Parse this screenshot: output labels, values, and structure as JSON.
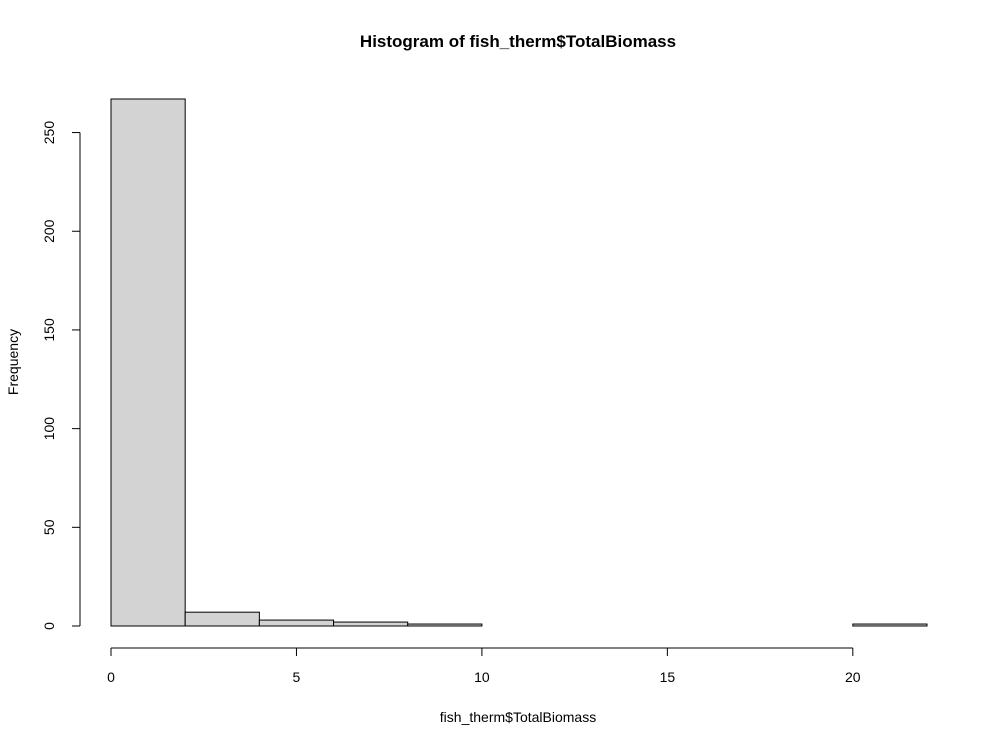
{
  "chart_data": {
    "type": "bar",
    "title": "Histogram of fish_therm$TotalBiomass",
    "xlabel": "fish_therm$TotalBiomass",
    "ylabel": "Frequency",
    "bins": [
      {
        "start": 0,
        "end": 2,
        "count": 267
      },
      {
        "start": 2,
        "end": 4,
        "count": 7
      },
      {
        "start": 4,
        "end": 6,
        "count": 3
      },
      {
        "start": 6,
        "end": 8,
        "count": 2
      },
      {
        "start": 8,
        "end": 10,
        "count": 1
      },
      {
        "start": 10,
        "end": 12,
        "count": 0
      },
      {
        "start": 12,
        "end": 14,
        "count": 0
      },
      {
        "start": 14,
        "end": 16,
        "count": 0
      },
      {
        "start": 16,
        "end": 18,
        "count": 0
      },
      {
        "start": 18,
        "end": 20,
        "count": 0
      },
      {
        "start": 20,
        "end": 22,
        "count": 1
      }
    ],
    "xlim": [
      0,
      22
    ],
    "ylim": [
      0,
      270
    ],
    "x_ticks": [
      0,
      5,
      10,
      15,
      20
    ],
    "x_tick_labels": [
      "0",
      "5",
      "10",
      "15",
      "20"
    ],
    "y_ticks": [
      0,
      50,
      100,
      150,
      200,
      250
    ],
    "y_tick_labels": [
      "0",
      "50",
      "100",
      "150",
      "200",
      "250"
    ],
    "bar_fill": "#d3d3d3",
    "bar_stroke": "#000000",
    "grid": false,
    "legend": "none"
  }
}
